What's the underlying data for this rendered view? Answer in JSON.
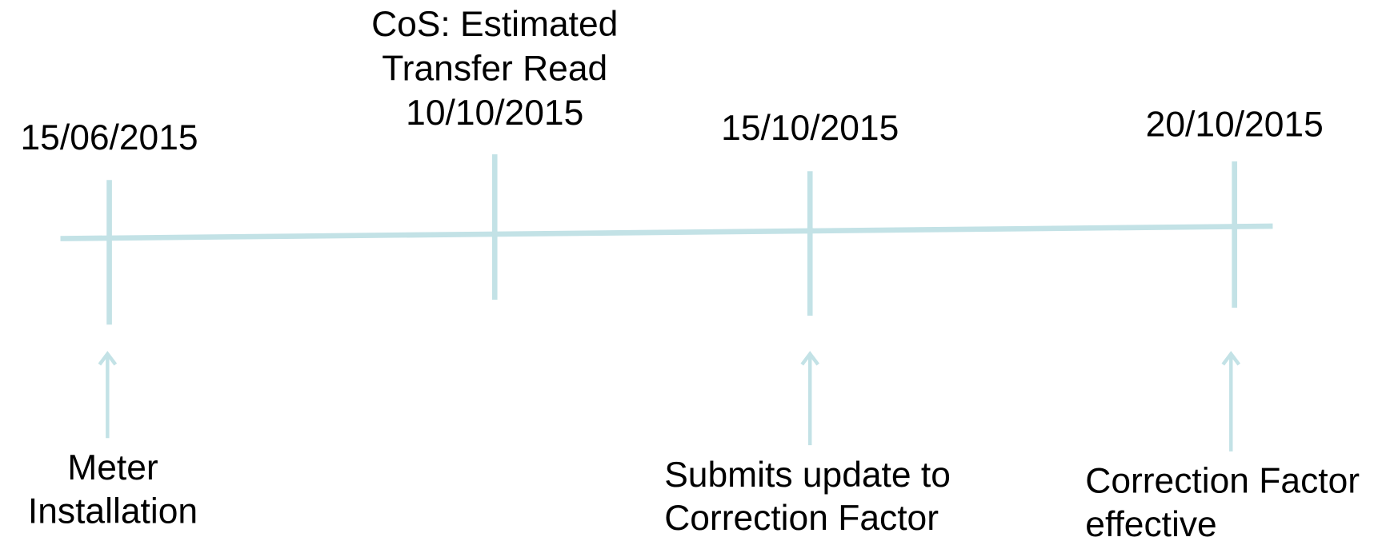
{
  "timeline": {
    "events": [
      {
        "date": "15/06/2015",
        "notes_above": [],
        "notes_below": [
          "Meter",
          "Installation"
        ]
      },
      {
        "date": "10/10/2015",
        "notes_above": [
          "CoS: Estimated",
          "Transfer Read"
        ],
        "notes_below": []
      },
      {
        "date": "15/10/2015",
        "notes_above": [],
        "notes_below": [
          "Submits update to",
          "Correction Factor"
        ]
      },
      {
        "date": "20/10/2015",
        "notes_above": [],
        "notes_below": [
          "Correction Factor",
          "effective"
        ]
      }
    ]
  }
}
